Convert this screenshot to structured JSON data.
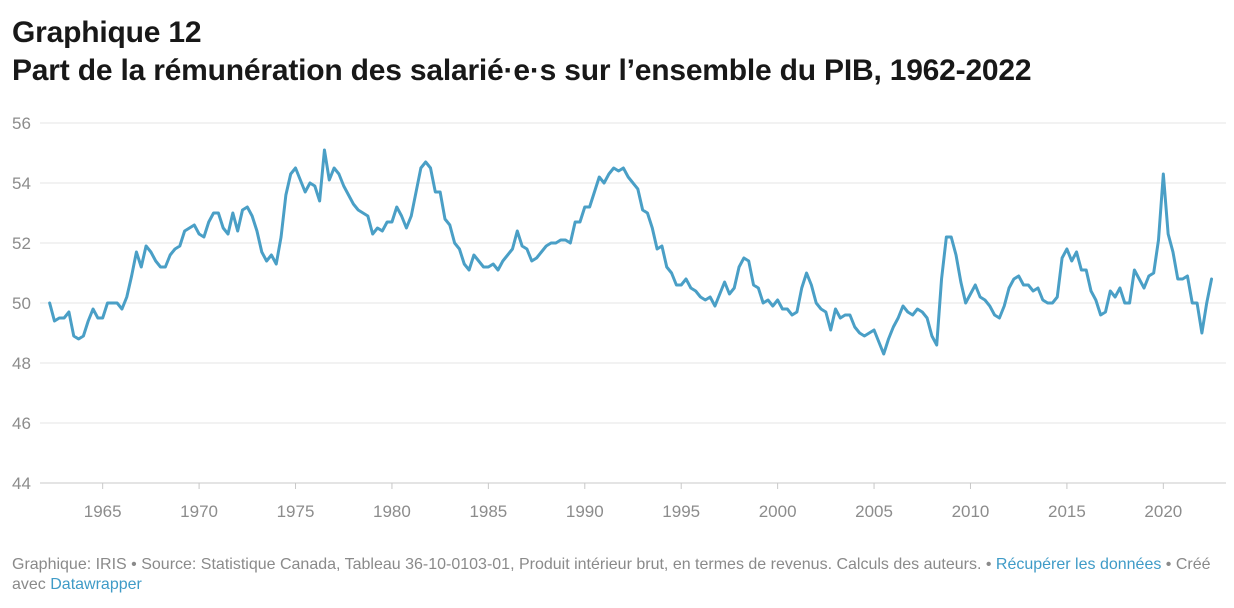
{
  "header": {
    "line1": "Graphique 12",
    "line2": "Part de la rémunération des salarié·e·s sur l’ensemble du PIB, 1962-2022"
  },
  "footer": {
    "part1": "Graphique: IRIS • Source: Statistique Canada, Tableau 36-10-0103-01, Produit intérieur brut, en termes de revenus. Calculs des auteurs. • ",
    "link1": "Récupérer les données",
    "part2": " • Créé avec ",
    "link2": "Datawrapper"
  },
  "colors": {
    "line": "#4a9fc6",
    "grid": "#e6e6e6",
    "tick": "#8c8c8c"
  },
  "chart_data": {
    "type": "line",
    "title": "Part de la rémunération des salarié·e·s sur l’ensemble du PIB, 1962-2022",
    "xlabel": "",
    "ylabel": "",
    "x_start": 1962.25,
    "x_step": 0.25,
    "xlim": [
      1961.75,
      2023.25
    ],
    "ylim": [
      44,
      56
    ],
    "y_ticks": [
      44,
      46,
      48,
      50,
      52,
      54,
      56
    ],
    "x_ticks": [
      1965,
      1970,
      1975,
      1980,
      1985,
      1990,
      1995,
      2000,
      2005,
      2010,
      2015,
      2020
    ],
    "grid": true,
    "legend": "none",
    "values": [
      50.0,
      49.4,
      49.5,
      49.5,
      49.7,
      48.9,
      48.8,
      48.9,
      49.4,
      49.8,
      49.5,
      49.5,
      50.0,
      50.0,
      50.0,
      49.8,
      50.2,
      50.9,
      51.7,
      51.2,
      51.9,
      51.7,
      51.4,
      51.2,
      51.2,
      51.6,
      51.8,
      51.9,
      52.4,
      52.5,
      52.6,
      52.3,
      52.2,
      52.7,
      53.0,
      53.0,
      52.5,
      52.3,
      53.0,
      52.4,
      53.1,
      53.2,
      52.9,
      52.4,
      51.7,
      51.4,
      51.6,
      51.3,
      52.2,
      53.6,
      54.3,
      54.5,
      54.1,
      53.7,
      54.0,
      53.9,
      53.4,
      55.1,
      54.1,
      54.5,
      54.3,
      53.9,
      53.6,
      53.3,
      53.1,
      53.0,
      52.9,
      52.3,
      52.5,
      52.4,
      52.7,
      52.7,
      53.2,
      52.9,
      52.5,
      52.9,
      53.7,
      54.5,
      54.7,
      54.5,
      53.7,
      53.7,
      52.8,
      52.6,
      52.0,
      51.8,
      51.3,
      51.1,
      51.6,
      51.4,
      51.2,
      51.2,
      51.3,
      51.1,
      51.4,
      51.6,
      51.8,
      52.4,
      51.9,
      51.8,
      51.4,
      51.5,
      51.7,
      51.9,
      52.0,
      52.0,
      52.1,
      52.1,
      52.0,
      52.7,
      52.7,
      53.2,
      53.2,
      53.7,
      54.2,
      54.0,
      54.3,
      54.5,
      54.4,
      54.5,
      54.2,
      54.0,
      53.8,
      53.1,
      53.0,
      52.5,
      51.8,
      51.9,
      51.2,
      51.0,
      50.6,
      50.6,
      50.8,
      50.5,
      50.4,
      50.2,
      50.1,
      50.2,
      49.9,
      50.3,
      50.7,
      50.3,
      50.5,
      51.2,
      51.5,
      51.4,
      50.6,
      50.5,
      50.0,
      50.1,
      49.9,
      50.1,
      49.8,
      49.8,
      49.6,
      49.7,
      50.5,
      51.0,
      50.6,
      50.0,
      49.8,
      49.7,
      49.1,
      49.8,
      49.5,
      49.6,
      49.6,
      49.2,
      49.0,
      48.9,
      49.0,
      49.1,
      48.7,
      48.3,
      48.8,
      49.2,
      49.5,
      49.9,
      49.7,
      49.6,
      49.8,
      49.7,
      49.5,
      48.9,
      48.6,
      50.8,
      52.2,
      52.2,
      51.6,
      50.7,
      50.0,
      50.3,
      50.6,
      50.2,
      50.1,
      49.9,
      49.6,
      49.5,
      49.9,
      50.5,
      50.8,
      50.9,
      50.6,
      50.6,
      50.4,
      50.5,
      50.1,
      50.0,
      50.0,
      50.2,
      51.5,
      51.8,
      51.4,
      51.7,
      51.1,
      51.1,
      50.4,
      50.1,
      49.6,
      49.7,
      50.4,
      50.2,
      50.5,
      50.0,
      50.0,
      51.1,
      50.8,
      50.5,
      50.9,
      51.0,
      52.1,
      54.3,
      52.3,
      51.7,
      50.8,
      50.8,
      50.9,
      50.0,
      50.0,
      49.0,
      50.0,
      50.8
    ]
  }
}
